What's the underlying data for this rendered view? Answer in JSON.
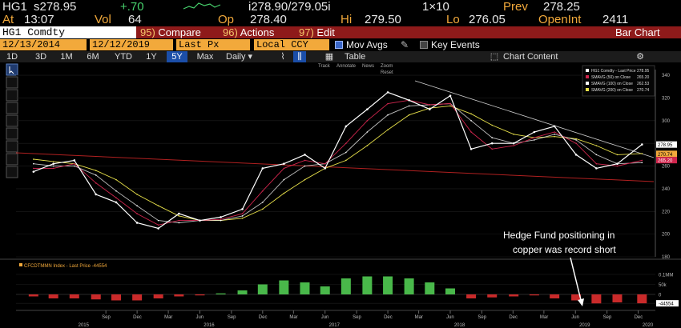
{
  "quote_line1": {
    "ticker": "HG1",
    "last": "s278.95",
    "change": "+.70",
    "bid_ask": "i278.90/279.05i",
    "size": "1×10",
    "prev_label": "Prev",
    "prev": "278.25"
  },
  "quote_line2": {
    "at_label": "At",
    "time": "13:07",
    "vol_label": "Vol",
    "vol": "64",
    "op_label": "Op",
    "op": "278.40",
    "hi_label": "Hi",
    "hi": "279.50",
    "lo_label": "Lo",
    "lo": "276.05",
    "oi_label": "OpenInt",
    "oi": "2411"
  },
  "command_bar": {
    "security": "HG1 Comdty",
    "compare_num": "95)",
    "compare": "Compare",
    "actions_num": "96)",
    "actions": "Actions",
    "edit_num": "97)",
    "edit": "Edit",
    "title": "Bar Chart"
  },
  "settings_bar": {
    "start_date": "12/13/2014",
    "end_date": "12/12/2019",
    "price_field": "Last Px",
    "currency": "Local CCY",
    "mov_avgs": "Mov Avgs",
    "key_events": "Key Events"
  },
  "range_bar": {
    "ranges": [
      "1D",
      "3D",
      "1M",
      "6M",
      "YTD",
      "1Y",
      "5Y",
      "Max"
    ],
    "active_range": "5Y",
    "period": "Daily",
    "table": "Table",
    "chart_content": "Chart Content"
  },
  "toolbar_mini": {
    "track": "Track",
    "annotate": "Annotate",
    "news": "News",
    "zoom": "Zoom",
    "reset": "Reset"
  },
  "legend": [
    {
      "label": "HG1 Comdty - Last Price",
      "value": "278.95",
      "color": "#ffffff"
    },
    {
      "label": "SMAVG (50)  on Close",
      "value": "265.20",
      "color": "#d0254d"
    },
    {
      "label": "SMAVG (100)  on Close",
      "value": "262.53",
      "color": "#ffffff"
    },
    {
      "label": "SMAVG (200)  on Close",
      "value": "270.74",
      "color": "#e7e04a"
    }
  ],
  "lower_legend": "CFCDTMMN Index - Last Price -44554",
  "annotation": [
    "Hedge Fund positioning in",
    "copper was record short"
  ],
  "chart_data": [
    {
      "type": "line",
      "title": "",
      "xlabel": "",
      "ylabel": "",
      "ylim": [
        180,
        345
      ],
      "y_ticks": [
        180,
        200,
        220,
        240,
        260,
        280,
        300,
        320,
        340
      ],
      "x": [
        "2015-02-02",
        "2015-04-01",
        "2015-06-01",
        "2015-08-03",
        "2015-10-01",
        "2015-12-01",
        "2016-02-01",
        "2016-04-01",
        "2016-06-01",
        "2016-08-01",
        "2016-10-03",
        "2016-12-01",
        "2017-02-01",
        "2017-04-03",
        "2017-06-01",
        "2017-08-01",
        "2017-10-02",
        "2017-12-01",
        "2018-02-01",
        "2018-04-02",
        "2018-06-01",
        "2018-08-01",
        "2018-10-01",
        "2018-12-03",
        "2019-02-01",
        "2019-04-01",
        "2019-06-03",
        "2019-08-01",
        "2019-10-01",
        "2019-12-12"
      ],
      "series": [
        {
          "name": "HG1 Comdty - Last Price",
          "color": "#ffffff",
          "values": [
            255,
            262,
            265,
            235,
            228,
            210,
            205,
            218,
            212,
            215,
            222,
            258,
            262,
            270,
            258,
            295,
            310,
            325,
            318,
            310,
            322,
            275,
            280,
            280,
            290,
            295,
            270,
            258,
            262,
            279
          ]
        },
        {
          "name": "SMAVG (50) on Close",
          "color": "#d0254d",
          "values": [
            258,
            258,
            262,
            245,
            232,
            218,
            208,
            212,
            212,
            213,
            218,
            238,
            258,
            265,
            262,
            280,
            300,
            315,
            318,
            314,
            315,
            290,
            275,
            278,
            285,
            290,
            280,
            262,
            260,
            265
          ]
        },
        {
          "name": "SMAVG (100) on Close",
          "color": "#ffffff",
          "values": [
            262,
            260,
            260,
            252,
            238,
            225,
            212,
            210,
            212,
            212,
            216,
            228,
            248,
            260,
            262,
            272,
            290,
            305,
            313,
            314,
            315,
            300,
            285,
            280,
            283,
            288,
            283,
            270,
            262,
            263
          ]
        },
        {
          "name": "SMAVG (200) on Close",
          "color": "#e7e04a",
          "values": [
            266,
            264,
            262,
            256,
            248,
            235,
            225,
            216,
            212,
            212,
            214,
            222,
            236,
            248,
            258,
            265,
            278,
            292,
            305,
            311,
            313,
            306,
            296,
            288,
            285,
            286,
            284,
            278,
            270,
            271
          ]
        }
      ],
      "price_labels": [
        "278.95",
        "270.74",
        "265.20"
      ]
    },
    {
      "type": "bar",
      "title": "",
      "ylim": [
        -0.06,
        0.12
      ],
      "y_tick_labels": [
        "0.1MM",
        "50k",
        "0",
        "-44554"
      ],
      "y_ticks": [
        0.1,
        0.05,
        0,
        -0.044554
      ],
      "x": [
        "2015-02-02",
        "2015-04-01",
        "2015-06-01",
        "2015-08-03",
        "2015-10-01",
        "2015-12-01",
        "2016-02-01",
        "2016-04-01",
        "2016-06-01",
        "2016-08-01",
        "2016-10-03",
        "2016-12-01",
        "2017-02-01",
        "2017-04-03",
        "2017-06-01",
        "2017-08-01",
        "2017-10-02",
        "2017-12-01",
        "2018-02-01",
        "2018-04-02",
        "2018-06-01",
        "2018-08-01",
        "2018-10-01",
        "2018-12-03",
        "2019-02-01",
        "2019-04-01",
        "2019-06-03",
        "2019-08-01",
        "2019-10-01",
        "2019-12-12"
      ],
      "values": [
        -0.01,
        -0.02,
        -0.02,
        -0.025,
        -0.03,
        -0.03,
        -0.02,
        -0.01,
        -0.005,
        0.005,
        0.02,
        0.05,
        0.07,
        0.06,
        0.04,
        0.08,
        0.09,
        0.09,
        0.08,
        0.06,
        0.03,
        -0.02,
        -0.015,
        -0.01,
        -0.005,
        -0.02,
        -0.03,
        -0.045,
        -0.04,
        -0.044554
      ],
      "positive_color": "#49b84a",
      "negative_color": "#c92a2a"
    }
  ],
  "x_axis": {
    "months": [
      {
        "label": "Sep",
        "date": "2015-09-01"
      },
      {
        "label": "Dec",
        "date": "2015-12-01"
      },
      {
        "label": "Mar",
        "date": "2016-03-01"
      },
      {
        "label": "Jun",
        "date": "2016-06-01"
      },
      {
        "label": "Sep",
        "date": "2016-09-01"
      },
      {
        "label": "Dec",
        "date": "2016-12-01"
      },
      {
        "label": "Mar",
        "date": "2017-03-01"
      },
      {
        "label": "Jun",
        "date": "2017-06-01"
      },
      {
        "label": "Sep",
        "date": "2017-09-01"
      },
      {
        "label": "Dec",
        "date": "2017-12-01"
      },
      {
        "label": "Mar",
        "date": "2018-03-01"
      },
      {
        "label": "Jun",
        "date": "2018-06-01"
      },
      {
        "label": "Sep",
        "date": "2018-09-01"
      },
      {
        "label": "Dec",
        "date": "2018-12-01"
      },
      {
        "label": "Mar",
        "date": "2019-03-01"
      },
      {
        "label": "Jun",
        "date": "2019-06-01"
      },
      {
        "label": "Sep",
        "date": "2019-09-01"
      },
      {
        "label": "Dec",
        "date": "2019-12-01"
      }
    ],
    "years": [
      {
        "label": "2015",
        "date": "2015-07-01"
      },
      {
        "label": "2016",
        "date": "2016-07-01"
      },
      {
        "label": "2017",
        "date": "2017-07-01"
      },
      {
        "label": "2018",
        "date": "2018-07-01"
      },
      {
        "label": "2019",
        "date": "2019-07-01"
      },
      {
        "label": "2020",
        "date": "2020-01-01"
      }
    ]
  }
}
